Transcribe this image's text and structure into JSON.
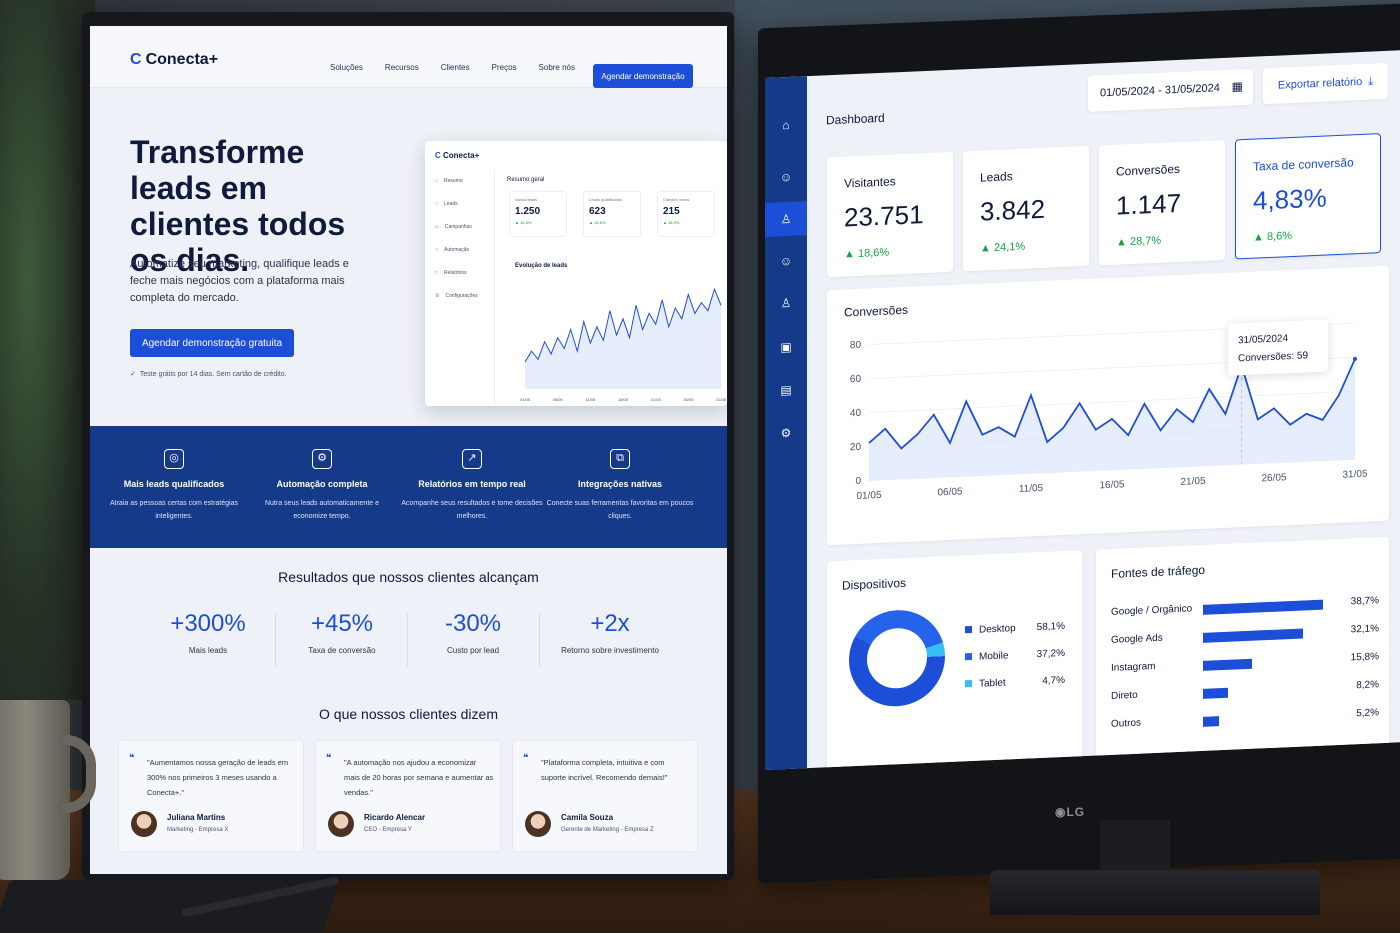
{
  "landing": {
    "brand": "Conecta+",
    "nav_links": [
      "Soluções",
      "Recursos",
      "Clientes",
      "Preços",
      "Sobre nós"
    ],
    "nav_cta": "Agendar demonstração",
    "hero_title": "Transforme leads em clientes todos os dias.",
    "hero_subtitle": "Automatize seu marketing, qualifique leads e feche mais negócios com a plataforma mais completa do mercado.",
    "hero_cta": "Agendar demonstração gratuita",
    "hero_note": "Teste grátis por 14 dias. Sem cartão de crédito.",
    "mini": {
      "brand": "Conecta+",
      "menu": [
        "Resumo",
        "Leads",
        "Campanhas",
        "Automação",
        "Relatórios",
        "Configurações"
      ],
      "heading": "Resumo geral",
      "kpis": [
        {
          "label": "Novos leads",
          "value": "1.250",
          "delta": "16,8%"
        },
        {
          "label": "Leads qualificados",
          "value": "623",
          "delta": "18,6%"
        },
        {
          "label": "Clientes novos",
          "value": "215",
          "delta": "38,5%"
        }
      ],
      "chart_title": "Evolução de leads",
      "y_ticks": [
        "80",
        "60",
        "40",
        "20"
      ],
      "x_ticks": [
        "01/05",
        "06/05",
        "11/05",
        "16/05",
        "21/05",
        "26/05",
        "31/05"
      ]
    },
    "features": [
      {
        "icon": "target-icon",
        "title": "Mais leads qualificados",
        "desc": "Atraia as pessoas certas com estratégias inteligentes."
      },
      {
        "icon": "gear-icon",
        "title": "Automação completa",
        "desc": "Nutra seus leads automaticamente e economize tempo."
      },
      {
        "icon": "chart-icon",
        "title": "Relatórios em tempo real",
        "desc": "Acompanhe seus resultados e tome decisões melhores."
      },
      {
        "icon": "integration-icon",
        "title": "Integrações nativas",
        "desc": "Conecte suas ferramentas favoritas em poucos cliques."
      }
    ],
    "results_title": "Resultados que nossos clientes alcançam",
    "stats": [
      {
        "value": "+300%",
        "label": "Mais leads"
      },
      {
        "value": "+45%",
        "label": "Taxa de conversão"
      },
      {
        "value": "-30%",
        "label": "Custo por lead"
      },
      {
        "value": "+2x",
        "label": "Retorno sobre investimento"
      }
    ],
    "testimonials_title": "O que nossos clientes dizem",
    "testimonials": [
      {
        "quote": "\"Aumentamos nossa geração de leads em 300% nos primeiros 3 meses usando a Conecta+.\"",
        "name": "Juliana Martins",
        "role": "Marketing - Empresa X"
      },
      {
        "quote": "\"A automação nos ajudou a economizar mais de 20 horas por semana e aumentar as vendas.\"",
        "name": "Ricardo Alencar",
        "role": "CEO - Empresa Y"
      },
      {
        "quote": "\"Plataforma completa, intuitiva e com suporte incrível. Recomendo demais!\"",
        "name": "Camila Souza",
        "role": "Gerente de Marketing - Empresa Z"
      }
    ]
  },
  "dashboard": {
    "title": "Dashboard",
    "date_range": "01/05/2024 - 31/05/2024",
    "export_label": "Exportar relatório",
    "kpis": [
      {
        "label": "Visitantes",
        "value": "23.751",
        "delta": "18,6%"
      },
      {
        "label": "Leads",
        "value": "3.842",
        "delta": "24,1%"
      },
      {
        "label": "Conversões",
        "value": "1.147",
        "delta": "28,7%"
      },
      {
        "label": "Taxa de conversão",
        "value": "4,83%",
        "delta": "8,6%"
      }
    ],
    "conversions_title": "Conversões",
    "tooltip": {
      "date": "31/05/2024",
      "text": "Conversões: 59"
    },
    "devices_title": "Dispositivos",
    "devices": [
      {
        "name": "Desktop",
        "pct": "58,1%",
        "value": 58.1,
        "color": "#1d4ed8"
      },
      {
        "name": "Mobile",
        "pct": "37,2%",
        "value": 37.2,
        "color": "#2563eb"
      },
      {
        "name": "Tablet",
        "pct": "4,7%",
        "value": 4.7,
        "color": "#38bdf8"
      }
    ],
    "traffic_title": "Fontes de tráfego",
    "traffic": [
      {
        "name": "Google / Orgânico",
        "pct": "38,7%",
        "value": 38.7
      },
      {
        "name": "Google Ads",
        "pct": "32,1%",
        "value": 32.1
      },
      {
        "name": "Instagram",
        "pct": "15,8%",
        "value": 15.8
      },
      {
        "name": "Direto",
        "pct": "8,2%",
        "value": 8.2
      },
      {
        "name": "Outros",
        "pct": "5,2%",
        "value": 5.2
      }
    ]
  },
  "chart_data": [
    {
      "type": "line",
      "title": "Conversões",
      "x": [
        "01/05",
        "02/05",
        "03/05",
        "04/05",
        "05/05",
        "06/05",
        "07/05",
        "08/05",
        "09/05",
        "10/05",
        "11/05",
        "12/05",
        "13/05",
        "14/05",
        "15/05",
        "16/05",
        "17/05",
        "18/05",
        "19/05",
        "20/05",
        "21/05",
        "22/05",
        "23/05",
        "24/05",
        "25/05",
        "26/05",
        "27/05",
        "28/05",
        "29/05",
        "30/05",
        "31/05"
      ],
      "y": [
        22,
        30,
        18,
        26,
        37,
        20,
        44,
        24,
        28,
        22,
        46,
        18,
        26,
        40,
        24,
        30,
        20,
        38,
        22,
        34,
        26,
        45,
        30,
        58,
        26,
        32,
        22,
        28,
        24,
        38,
        59
      ],
      "x_ticks": [
        "01/05",
        "06/05",
        "11/05",
        "16/05",
        "21/05",
        "26/05",
        "31/05"
      ],
      "y_ticks": [
        "0",
        "20",
        "40",
        "60",
        "80"
      ],
      "ylim": [
        0,
        80
      ]
    },
    {
      "type": "pie",
      "title": "Dispositivos",
      "categories": [
        "Desktop",
        "Mobile",
        "Tablet"
      ],
      "values": [
        58.1,
        37.2,
        4.7
      ]
    },
    {
      "type": "bar",
      "title": "Fontes de tráfego",
      "categories": [
        "Google / Orgânico",
        "Google Ads",
        "Instagram",
        "Direto",
        "Outros"
      ],
      "values": [
        38.7,
        32.1,
        15.8,
        8.2,
        5.2
      ]
    },
    {
      "type": "area",
      "title": "Evolução de leads",
      "x_ticks": [
        "01/05",
        "06/05",
        "11/05",
        "16/05",
        "21/05",
        "26/05",
        "31/05"
      ],
      "y": [
        20,
        28,
        22,
        35,
        26,
        38,
        30,
        44,
        28,
        50,
        34,
        46,
        36,
        58,
        40,
        52,
        38,
        62,
        44,
        56,
        48,
        66,
        46,
        60,
        52,
        70,
        56,
        64,
        58,
        74,
        62
      ],
      "ylim": [
        0,
        80
      ]
    }
  ]
}
